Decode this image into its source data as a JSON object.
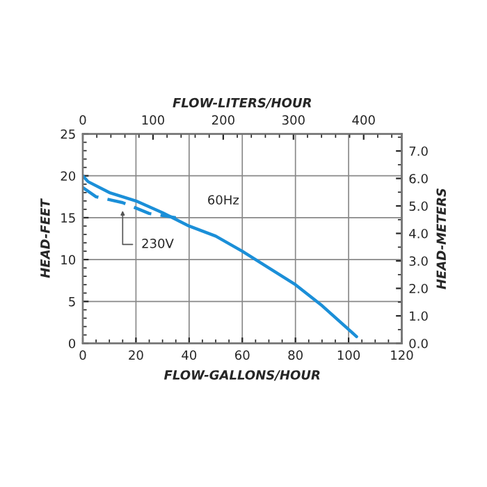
{
  "chart_data": {
    "type": "line",
    "xlabel": "FLOW-GALLONS/HOUR",
    "ylabel": "HEAD-FEET",
    "x2label": "FLOW-LITERS/HOUR",
    "y2label": "HEAD-METERS",
    "xlim": [
      0,
      120
    ],
    "xticks": [
      0,
      20,
      40,
      60,
      80,
      100,
      120
    ],
    "ylim": [
      0,
      25
    ],
    "yticks": [
      0,
      5,
      10,
      15,
      20,
      25
    ],
    "x2lim": [
      0,
      454.25
    ],
    "x2ticks": [
      0,
      100,
      200,
      300,
      400
    ],
    "y2lim": [
      0,
      7.62
    ],
    "y2ticks": [
      {
        "value": 0,
        "label": "0.0"
      },
      {
        "value": 1,
        "label": "1.0"
      },
      {
        "value": 2,
        "label": "2.0"
      },
      {
        "value": 3,
        "label": "3.0"
      },
      {
        "value": 4,
        "label": "4.0"
      },
      {
        "value": 5,
        "label": "5.0"
      },
      {
        "value": 6,
        "label": "6.0"
      },
      {
        "value": 7,
        "label": "7.0"
      }
    ],
    "grid": true,
    "series": [
      {
        "color": "#1b8fd8",
        "line_style": "solid",
        "x": [
          0,
          2,
          10,
          20,
          30,
          40,
          50,
          60,
          70,
          80,
          90,
          103
        ],
        "values": [
          20,
          19.3,
          18,
          17,
          15.6,
          14,
          12.8,
          11,
          9,
          7,
          4.5,
          0.8
        ]
      },
      {
        "color": "#1b8fd8",
        "line_style": "dashed",
        "x": [
          0,
          5,
          15,
          25,
          35
        ],
        "values": [
          18.6,
          17.5,
          16.8,
          15.5,
          15
        ]
      }
    ],
    "annotations": [
      "60Hz",
      {
        "text": "230V",
        "x": 15,
        "y": 16.3
      }
    ]
  }
}
